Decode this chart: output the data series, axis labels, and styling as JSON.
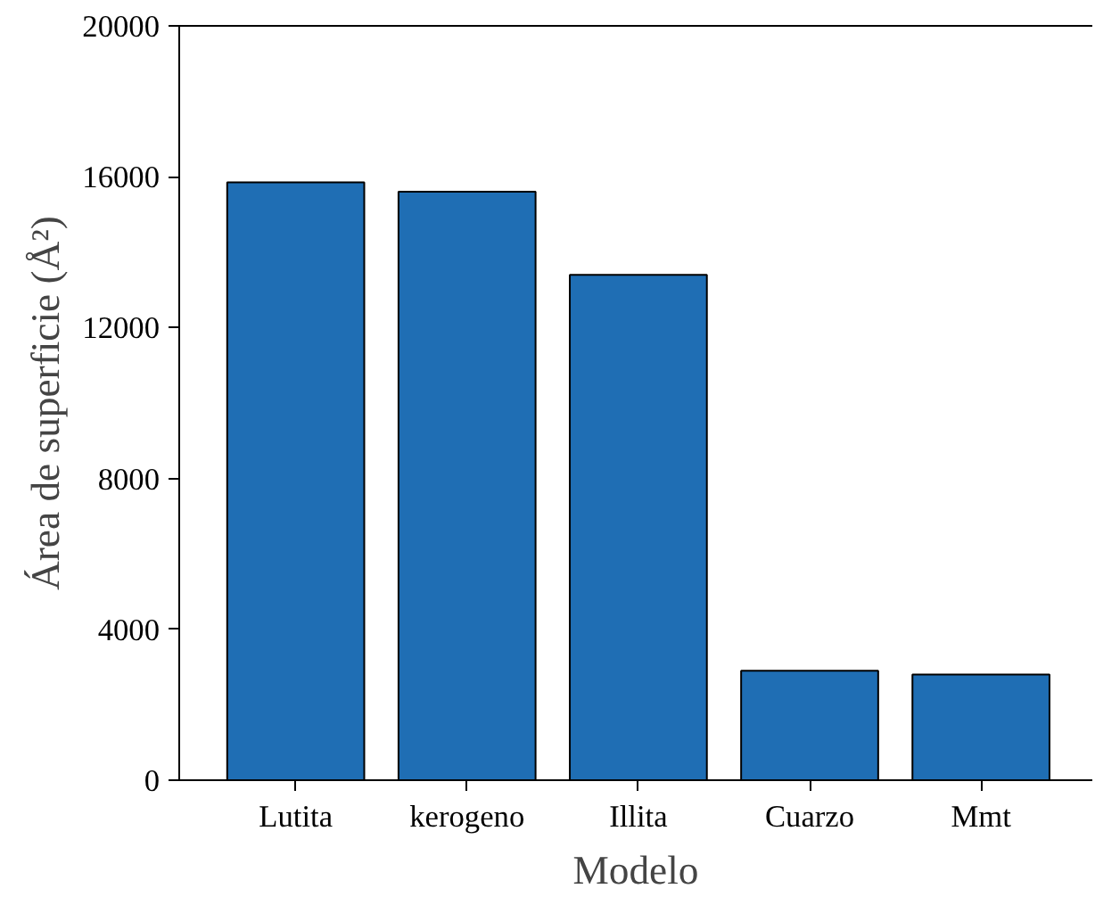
{
  "chart_data": {
    "type": "bar",
    "xlabel": "Modelo",
    "ylabel": "Área de superficie (Å²)",
    "categories": [
      "Lutita",
      "kerogeno",
      "Illita",
      "Cuarzo",
      "Mmt"
    ],
    "values": [
      15850,
      15600,
      13400,
      2900,
      2800
    ],
    "color": "#1f6eb4",
    "ylim": [
      0,
      20000
    ],
    "yticks": [
      0,
      4000,
      8000,
      12000,
      16000,
      20000
    ],
    "grid": false
  }
}
